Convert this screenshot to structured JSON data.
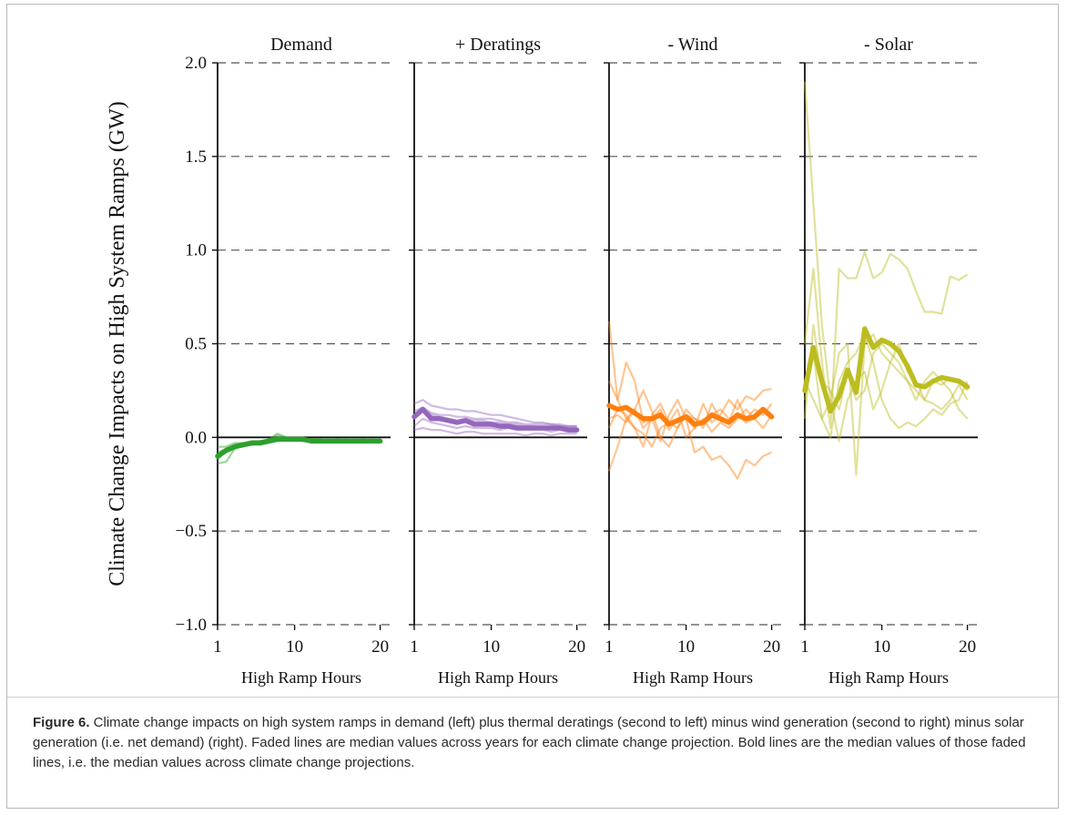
{
  "figure": {
    "caption_label": "Figure 6.",
    "caption_text": " Climate change impacts on high system ramps in demand (left) plus thermal deratings (second to left) minus wind generation (second to right) minus solar generation (i.e. net demand) (right). Faded lines are median values across years for each climate change projection. Bold lines are the median values of those faded lines, i.e. the median values across climate change projections."
  },
  "chart_data": {
    "type": "line",
    "ylabel": "Climate Change Impacts on High System Ramps (GW)",
    "ylim": [
      -1.0,
      2.0
    ],
    "yticks": [
      -1.0,
      -0.5,
      0.0,
      0.5,
      1.0,
      1.5,
      2.0
    ],
    "ytick_labels": [
      "−1.0",
      "−0.5",
      "0.0",
      "0.5",
      "1.0",
      "1.5",
      "2.0"
    ],
    "xlim": [
      1,
      21
    ],
    "xticks": [
      1,
      10,
      20
    ],
    "xtick_labels": [
      "1",
      "10",
      "20"
    ],
    "grid": "horizontal dashed",
    "panels": [
      {
        "title": "Demand",
        "xlabel": "High Ramp Hours",
        "color": "#2ca02c",
        "x": [
          1,
          2,
          3,
          4,
          5,
          6,
          7,
          8,
          9,
          10,
          11,
          12,
          13,
          14,
          15,
          16,
          17,
          18,
          19,
          20
        ],
        "faded": [
          [
            -0.14,
            -0.13,
            -0.06,
            -0.04,
            -0.04,
            -0.03,
            -0.01,
            0.01,
            0.0,
            -0.01,
            -0.02,
            -0.02,
            -0.01,
            -0.02,
            -0.02,
            -0.02,
            -0.02,
            -0.01,
            -0.02,
            -0.02
          ],
          [
            -0.12,
            -0.07,
            -0.05,
            -0.04,
            -0.03,
            -0.02,
            -0.01,
            0.02,
            0.0,
            -0.01,
            -0.01,
            -0.02,
            -0.02,
            -0.02,
            -0.01,
            -0.02,
            -0.01,
            -0.02,
            -0.02,
            -0.01
          ],
          [
            -0.05,
            -0.05,
            -0.03,
            -0.03,
            -0.02,
            -0.02,
            -0.01,
            0.0,
            -0.01,
            -0.01,
            -0.01,
            -0.01,
            -0.02,
            -0.01,
            -0.02,
            -0.01,
            -0.02,
            -0.02,
            -0.01,
            -0.02
          ],
          [
            -0.08,
            -0.06,
            -0.04,
            -0.03,
            -0.03,
            -0.02,
            -0.02,
            -0.01,
            -0.01,
            -0.01,
            -0.02,
            -0.01,
            -0.01,
            -0.02,
            -0.01,
            -0.02,
            -0.02,
            -0.01,
            -0.02,
            -0.02
          ]
        ],
        "median": [
          -0.1,
          -0.07,
          -0.05,
          -0.04,
          -0.03,
          -0.03,
          -0.02,
          -0.01,
          -0.01,
          -0.01,
          -0.01,
          -0.02,
          -0.02,
          -0.02,
          -0.02,
          -0.02,
          -0.02,
          -0.02,
          -0.02,
          -0.02
        ]
      },
      {
        "title": "+ Deratings",
        "xlabel": "High Ramp Hours",
        "color": "#9467bd",
        "x": [
          1,
          2,
          3,
          4,
          5,
          6,
          7,
          8,
          9,
          10,
          11,
          12,
          13,
          14,
          15,
          16,
          17,
          18,
          19,
          20
        ],
        "faded": [
          [
            0.18,
            0.2,
            0.17,
            0.16,
            0.15,
            0.15,
            0.14,
            0.14,
            0.13,
            0.12,
            0.12,
            0.11,
            0.1,
            0.09,
            0.08,
            0.08,
            0.07,
            0.07,
            0.06,
            0.06
          ],
          [
            0.1,
            0.15,
            0.12,
            0.11,
            0.1,
            0.09,
            0.1,
            0.09,
            0.09,
            0.08,
            0.08,
            0.07,
            0.07,
            0.06,
            0.06,
            0.05,
            0.05,
            0.06,
            0.05,
            0.05
          ],
          [
            0.06,
            0.1,
            0.08,
            0.07,
            0.06,
            0.05,
            0.06,
            0.05,
            0.05,
            0.05,
            0.04,
            0.05,
            0.04,
            0.04,
            0.04,
            0.04,
            0.03,
            0.04,
            0.03,
            0.03
          ],
          [
            0.04,
            0.05,
            0.04,
            0.04,
            0.03,
            0.02,
            0.03,
            0.03,
            0.02,
            0.02,
            0.02,
            0.02,
            0.02,
            0.01,
            0.02,
            0.02,
            0.01,
            0.02,
            0.02,
            0.02
          ],
          [
            0.14,
            0.16,
            0.13,
            0.12,
            0.12,
            0.11,
            0.11,
            0.1,
            0.1,
            0.1,
            0.09,
            0.08,
            0.08,
            0.07,
            0.07,
            0.07,
            0.07,
            0.06,
            0.06,
            0.06
          ]
        ],
        "median": [
          0.11,
          0.15,
          0.1,
          0.1,
          0.09,
          0.08,
          0.09,
          0.07,
          0.07,
          0.07,
          0.06,
          0.06,
          0.05,
          0.05,
          0.05,
          0.05,
          0.05,
          0.05,
          0.04,
          0.04
        ]
      },
      {
        "title": "- Wind",
        "xlabel": "High Ramp Hours",
        "color": "#ff7f0e",
        "x": [
          1,
          2,
          3,
          4,
          5,
          6,
          7,
          8,
          9,
          10,
          11,
          12,
          13,
          14,
          15,
          16,
          17,
          18,
          19,
          20
        ],
        "faded": [
          [
            0.62,
            0.2,
            0.4,
            0.3,
            0.08,
            0.1,
            0.15,
            0.04,
            0.1,
            0.1,
            0.05,
            0.18,
            0.08,
            0.12,
            0.2,
            0.15,
            0.22,
            0.2,
            0.25,
            0.26
          ],
          [
            -0.18,
            -0.05,
            0.1,
            0.15,
            0.25,
            0.14,
            0.0,
            -0.05,
            0.05,
            0.15,
            0.1,
            0.05,
            0.18,
            0.1,
            0.08,
            0.2,
            0.1,
            0.15,
            0.12,
            0.18
          ],
          [
            0.3,
            0.2,
            0.1,
            0.05,
            0.02,
            -0.05,
            0.05,
            0.08,
            0.15,
            0.0,
            0.05,
            0.1,
            0.03,
            0.08,
            0.05,
            0.1,
            0.15,
            0.1,
            0.05,
            0.12
          ],
          [
            0.1,
            0.12,
            0.08,
            0.15,
            0.05,
            0.1,
            -0.02,
            0.12,
            0.2,
            0.1,
            -0.08,
            -0.05,
            -0.12,
            -0.1,
            -0.15,
            -0.22,
            -0.12,
            -0.15,
            -0.1,
            -0.08
          ],
          [
            0.05,
            0.15,
            0.12,
            0.05,
            -0.05,
            0.12,
            0.18,
            0.08,
            0.05,
            0.12,
            0.1,
            0.08,
            0.12,
            0.15,
            0.1,
            0.12,
            0.08,
            0.1,
            0.15,
            0.1
          ]
        ],
        "median": [
          0.17,
          0.15,
          0.16,
          0.13,
          0.1,
          0.1,
          0.12,
          0.07,
          0.09,
          0.11,
          0.07,
          0.08,
          0.12,
          0.1,
          0.08,
          0.12,
          0.1,
          0.11,
          0.15,
          0.11
        ]
      },
      {
        "title": "- Solar",
        "xlabel": "High Ramp Hours",
        "color": "#bcbd22",
        "x": [
          1,
          2,
          3,
          4,
          5,
          6,
          7,
          8,
          9,
          10,
          11,
          12,
          13,
          14,
          15,
          16,
          17,
          18,
          19,
          20
        ],
        "faded": [
          [
            1.9,
            1.25,
            0.6,
            0.2,
            0.45,
            0.5,
            -0.2,
            0.5,
            0.55,
            0.45,
            0.4,
            0.35,
            0.3,
            0.2,
            0.3,
            0.35,
            0.3,
            0.25,
            0.15,
            0.1
          ],
          [
            0.5,
            0.9,
            0.4,
            0.05,
            0.9,
            0.85,
            0.85,
            0.99,
            0.85,
            0.88,
            0.98,
            0.95,
            0.9,
            0.78,
            0.67,
            0.67,
            0.66,
            0.86,
            0.84,
            0.87
          ],
          [
            0.3,
            0.2,
            0.1,
            0.2,
            -0.02,
            0.2,
            0.3,
            0.35,
            0.15,
            0.25,
            0.4,
            0.5,
            0.35,
            0.3,
            0.2,
            0.18,
            0.15,
            0.2,
            0.28,
            0.2
          ],
          [
            0.2,
            0.45,
            0.1,
            0.0,
            0.3,
            0.4,
            0.45,
            0.55,
            0.4,
            0.2,
            0.1,
            0.05,
            0.08,
            0.06,
            0.1,
            0.15,
            0.12,
            0.18,
            0.2,
            0.3
          ],
          [
            0.1,
            0.6,
            0.3,
            0.25,
            0.15,
            0.35,
            0.2,
            0.25,
            0.45,
            0.5,
            0.45,
            0.4,
            0.3,
            0.25,
            0.2,
            0.3,
            0.28,
            0.32,
            0.3,
            0.25
          ]
        ],
        "median": [
          0.25,
          0.48,
          0.3,
          0.14,
          0.22,
          0.36,
          0.24,
          0.58,
          0.48,
          0.52,
          0.5,
          0.46,
          0.38,
          0.28,
          0.27,
          0.3,
          0.32,
          0.31,
          0.3,
          0.27
        ]
      }
    ]
  }
}
